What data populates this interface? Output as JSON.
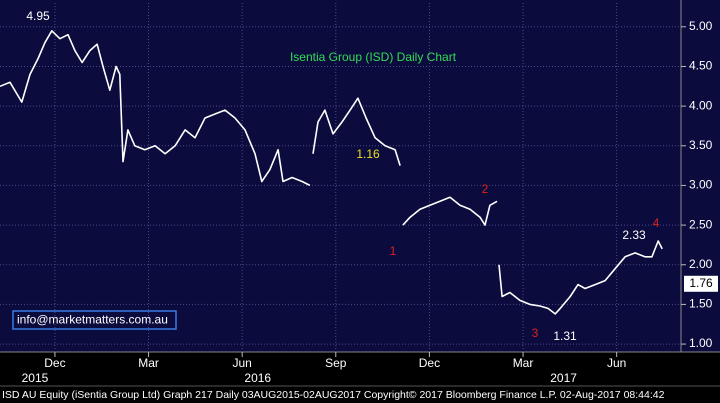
{
  "chart_data": {
    "type": "line",
    "title": "Isentia Group (ISD) Daily Chart",
    "footer": "ISD AU Equity (iSentia Group Ltd) Graph 217  Daily 03AUG2015-02AUG2017 Copyright© 2017 Bloomberg Finance L.P. 02-Aug-2017 08:44:42",
    "contact": "info@marketmatters.com.au",
    "xlim": [
      -1.76,
      20.03
    ],
    "xticks": [
      {
        "value": 0,
        "label": "Dec"
      },
      {
        "value": 3,
        "label": "Mar"
      },
      {
        "value": 6,
        "label": "Jun"
      },
      {
        "value": 9,
        "label": "Sep"
      },
      {
        "value": 12,
        "label": "Dec"
      },
      {
        "value": 15,
        "label": "Mar"
      },
      {
        "value": 18,
        "label": "Jun"
      }
    ],
    "year_labels": [
      {
        "value": -0.64,
        "label": "2015"
      },
      {
        "value": 6.5,
        "label": "2016"
      },
      {
        "value": 16.3,
        "label": "2017"
      }
    ],
    "ylim": [
      0.9,
      5.3
    ],
    "yticks": [
      {
        "value": 1,
        "label": "1.00"
      },
      {
        "value": 1.5,
        "label": "1.50"
      },
      {
        "value": 2,
        "label": "2.00"
      },
      {
        "value": 2.5,
        "label": "2.50"
      },
      {
        "value": 3,
        "label": "3.00"
      },
      {
        "value": 3.5,
        "label": "3.50"
      },
      {
        "value": 4,
        "label": "4.00"
      },
      {
        "value": 4.5,
        "label": "4.50"
      },
      {
        "value": 5,
        "label": "5.00"
      }
    ],
    "grid": true,
    "last_value": 1.76,
    "annotations": [
      {
        "label": "4.95",
        "color": "#ffffff"
      },
      {
        "label": "1.16",
        "color": "#f0e020"
      },
      {
        "label": "1",
        "color": "#e02020"
      },
      {
        "label": "2",
        "color": "#e02020"
      },
      {
        "label": "3",
        "color": "#e02020"
      },
      {
        "label": "1.31",
        "color": "#ffffff"
      },
      {
        "label": "2.33",
        "color": "#ffffff"
      },
      {
        "label": "4",
        "color": "#e02020"
      }
    ],
    "series": [
      {
        "name": "ISD AU Equity",
        "color": "#ffffff",
        "x": [
          -1.76,
          -1.44,
          -1.06,
          -0.8,
          -0.54,
          -0.32,
          -0.1,
          0.16,
          0.42,
          0.64,
          0.87,
          1.12,
          1.35,
          1.54,
          1.76,
          1.96,
          2.08,
          2.18,
          2.34,
          2.56,
          2.88,
          3.21,
          3.53,
          3.85,
          4.17,
          4.49,
          4.81,
          5.13,
          5.45,
          5.77,
          6.09,
          6.41,
          6.63,
          6.89,
          7.15,
          7.31,
          7.6,
          7.92,
          8.17,
          8.22,
          8.27,
          8.43,
          8.65,
          8.91,
          9.2,
          9.46,
          9.71,
          9.97,
          10.26,
          10.58,
          10.9,
          11.06,
          11.09,
          11.15,
          11.38,
          11.7,
          12.02,
          12.34,
          12.66,
          12.98,
          13.3,
          13.62,
          13.78,
          13.94,
          14.17,
          14.2,
          14.23,
          14.33,
          14.58,
          14.9,
          15.22,
          15.54,
          15.8,
          16.03,
          16.19,
          16.51,
          16.76,
          16.99,
          17.31,
          17.63,
          17.95,
          18.27,
          18.59,
          18.91,
          19.13,
          19.33,
          19.46,
          19.5,
          19.55
        ],
        "values": [
          4.25,
          4.3,
          4.05,
          4.4,
          4.6,
          4.8,
          4.95,
          4.85,
          4.9,
          4.7,
          4.55,
          4.7,
          4.78,
          4.5,
          4.2,
          4.5,
          4.4,
          3.3,
          3.7,
          3.5,
          3.45,
          3.5,
          3.4,
          3.5,
          3.7,
          3.6,
          3.85,
          3.9,
          3.95,
          3.85,
          3.7,
          3.4,
          3.05,
          3.2,
          3.45,
          3.05,
          3.1,
          3.05,
          3.0,
          null,
          3.4,
          3.8,
          3.95,
          3.65,
          3.8,
          3.95,
          4.1,
          3.85,
          3.6,
          3.5,
          3.45,
          3.25,
          null,
          2.5,
          2.6,
          2.7,
          2.75,
          2.8,
          2.85,
          2.75,
          2.7,
          2.6,
          2.5,
          2.75,
          2.8,
          null,
          2.0,
          1.6,
          1.65,
          1.55,
          1.5,
          1.48,
          1.45,
          1.38,
          1.45,
          1.6,
          1.75,
          1.7,
          1.75,
          1.8,
          1.95,
          2.1,
          2.15,
          2.1,
          2.1,
          2.3,
          2.2,
          null,
          1.76
        ]
      }
    ]
  }
}
